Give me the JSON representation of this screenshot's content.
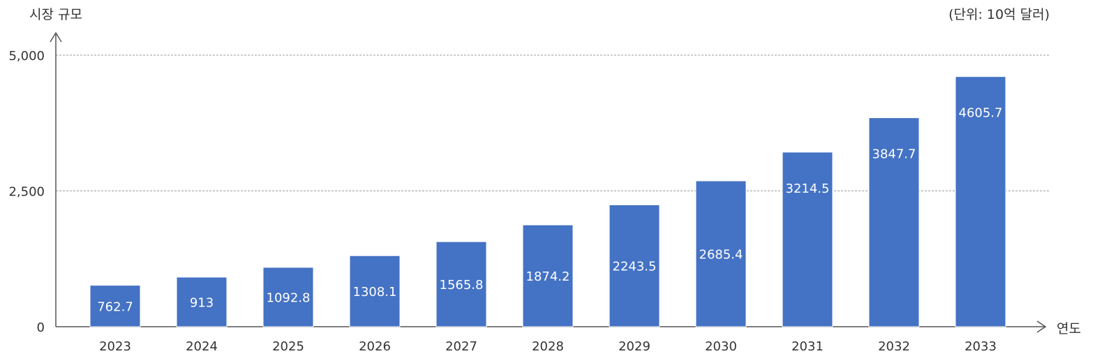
{
  "chart_data": {
    "type": "bar",
    "ylabel": "시장 규모",
    "xlabel": "연도",
    "unit_note": "(단위: 10억 달러)",
    "categories": [
      "2023",
      "2024",
      "2025",
      "2026",
      "2027",
      "2028",
      "2029",
      "2030",
      "2031",
      "2032",
      "2033"
    ],
    "values": [
      762.7,
      913,
      1092.8,
      1308.1,
      1565.8,
      1874.2,
      2243.5,
      2685.4,
      3214.5,
      3847.7,
      4605.7
    ],
    "data_labels": [
      "762.7",
      "913",
      "1092.8",
      "1308.1",
      "1565.8",
      "1874.2",
      "2243.5",
      "2685.4",
      "3214.5",
      "3847.7",
      "4605.7"
    ],
    "yticks": [
      0,
      2500,
      5000
    ],
    "ytick_labels": [
      "0",
      "2,500",
      "5,000"
    ],
    "ylim": [
      0,
      5000
    ],
    "grid": "horizontal-dashed",
    "legend": "none",
    "colors": {
      "bar": "#4472C4",
      "bar_label": "#FFFFFF",
      "axis": "#555555",
      "grid": "#999999",
      "text": "#333333"
    }
  }
}
